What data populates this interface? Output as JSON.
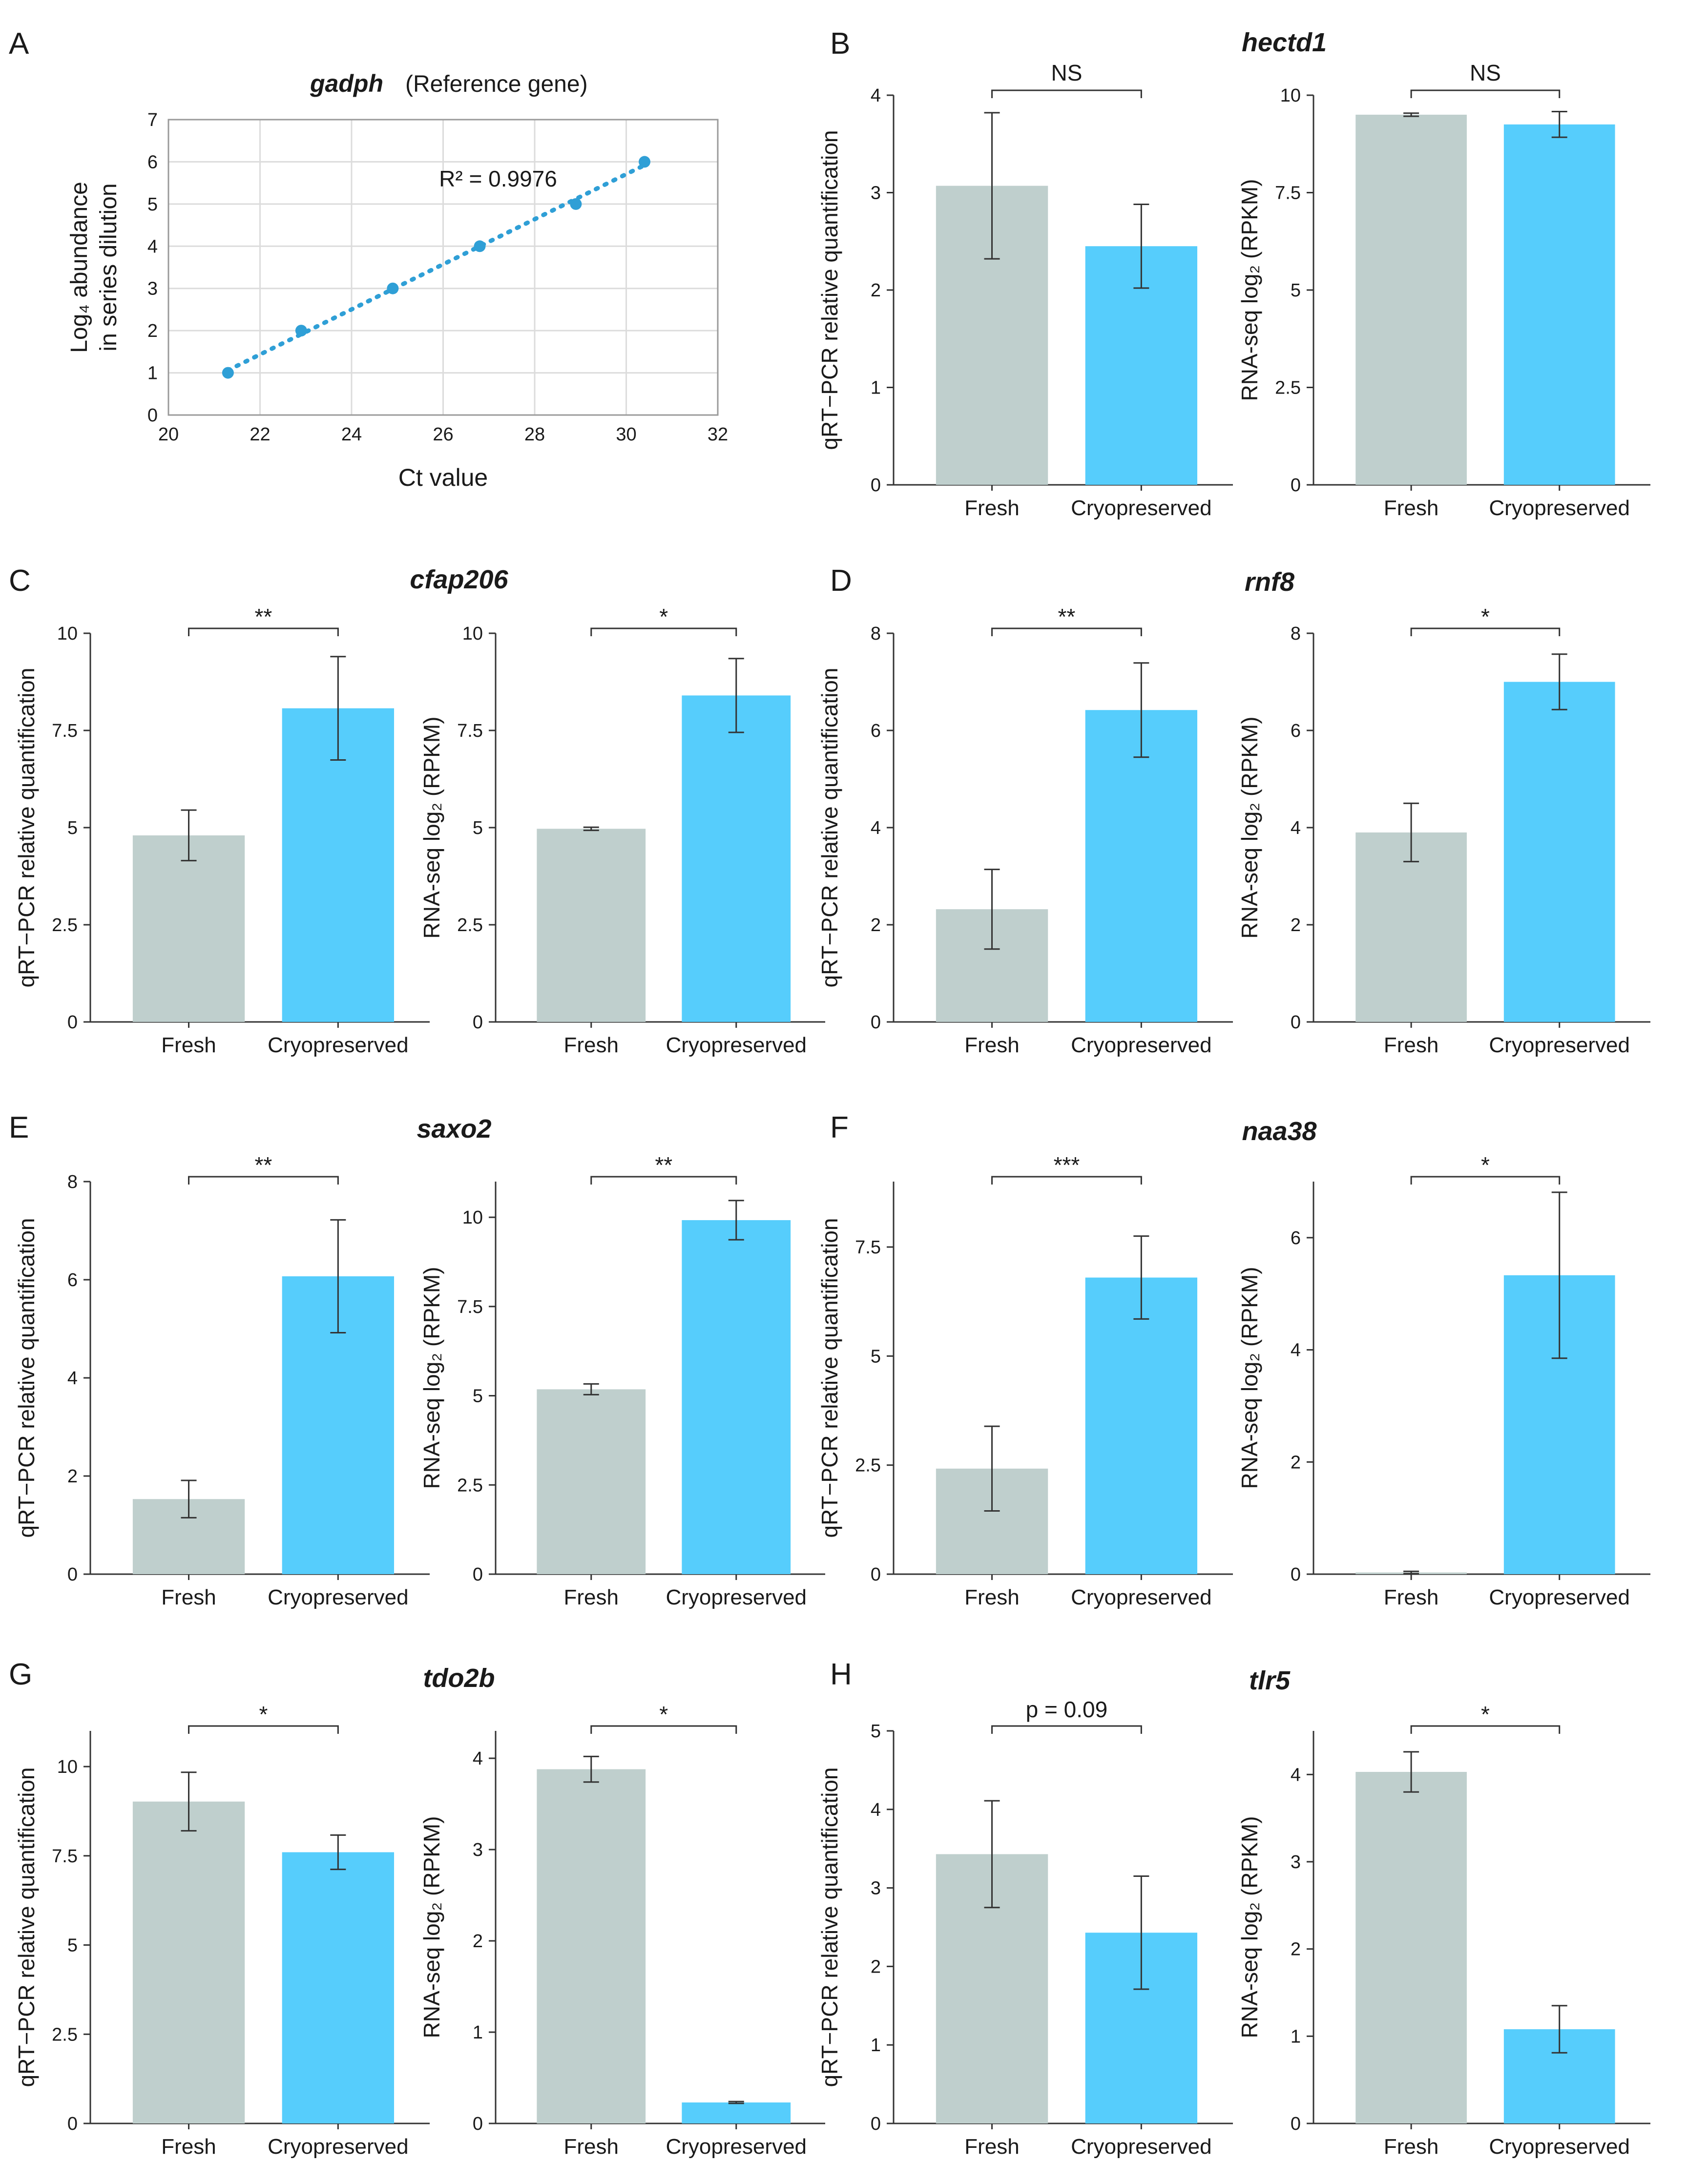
{
  "colors": {
    "fresh": "#bfcfcd",
    "cryo": "#56cdfc",
    "scatter": "#2f9fd6",
    "axis": "#333333",
    "grid": "#dcdcdc",
    "text": "#1a1a1a"
  },
  "chart_data": [
    {
      "panel": "A",
      "type": "scatter",
      "title": "gadph",
      "subtitle": "(Reference gene)",
      "xlabel": "Ct value",
      "ylabel": [
        "Log₄ abundance",
        "in series dilution"
      ],
      "xlim": [
        20,
        32
      ],
      "ylim": [
        0,
        7
      ],
      "xticks": [
        20,
        22,
        24,
        26,
        28,
        30,
        32
      ],
      "yticks": [
        0,
        1,
        2,
        3,
        4,
        5,
        6,
        7
      ],
      "grid": true,
      "x": [
        21.3,
        22.9,
        24.9,
        26.8,
        28.9,
        30.4
      ],
      "y": [
        1,
        2,
        3,
        4,
        5,
        6
      ],
      "annotation": "R² = 0.9976"
    },
    {
      "panel": "B",
      "gene": "hectd1",
      "type": "bar",
      "ylabel": "qRT−PCR relative quantification",
      "categories": [
        "Fresh",
        "Cryopreserved"
      ],
      "values": [
        3.07,
        2.45
      ],
      "errors": [
        0.75,
        0.43
      ],
      "ylim": [
        0,
        4
      ],
      "yticks": [
        "0",
        "1",
        "2",
        "3",
        "4"
      ],
      "significance": "NS"
    },
    {
      "panel": "B",
      "gene": "hectd1",
      "type": "bar",
      "ylabel": "RNA-seq log₂ (RPKM)",
      "categories": [
        "Fresh",
        "Cryopreserved"
      ],
      "values": [
        9.5,
        9.25
      ],
      "errors": [
        0.04,
        0.33
      ],
      "ylim": [
        0,
        10
      ],
      "yticks": [
        "0",
        "2.5",
        "5",
        "7.5",
        "10"
      ],
      "significance": "NS"
    },
    {
      "panel": "C",
      "gene": "cfap206",
      "type": "bar",
      "ylabel": "qRT−PCR relative quantification",
      "categories": [
        "Fresh",
        "Cryopreserved"
      ],
      "values": [
        4.8,
        8.07
      ],
      "errors": [
        0.65,
        1.33
      ],
      "ylim": [
        0,
        10
      ],
      "yticks": [
        "0",
        "2.5",
        "5",
        "7.5",
        "10"
      ],
      "significance": "**"
    },
    {
      "panel": "C",
      "gene": "cfap206",
      "type": "bar",
      "ylabel": "RNA-seq log₂ (RPKM)",
      "categories": [
        "Fresh",
        "Cryopreserved"
      ],
      "values": [
        4.97,
        8.4
      ],
      "errors": [
        0.04,
        0.95
      ],
      "ylim": [
        0,
        10
      ],
      "yticks": [
        "0",
        "2.5",
        "5",
        "7.5",
        "10"
      ],
      "significance": "*"
    },
    {
      "panel": "D",
      "gene": "rnf8",
      "type": "bar",
      "ylabel": "qRT−PCR relative quantification",
      "categories": [
        "Fresh",
        "Cryopreserved"
      ],
      "values": [
        2.32,
        6.42
      ],
      "errors": [
        0.82,
        0.97
      ],
      "ylim": [
        0,
        8
      ],
      "yticks": [
        "0",
        "2",
        "4",
        "6",
        "8"
      ],
      "significance": "**"
    },
    {
      "panel": "D",
      "gene": "rnf8",
      "type": "bar",
      "ylabel": "RNA-seq log₂ (RPKM)",
      "categories": [
        "Fresh",
        "Cryopreserved"
      ],
      "values": [
        3.9,
        7.0
      ],
      "errors": [
        0.6,
        0.57
      ],
      "ylim": [
        0,
        8
      ],
      "yticks": [
        "0",
        "2",
        "4",
        "6",
        "8"
      ],
      "significance": "*"
    },
    {
      "panel": "E",
      "gene": "saxo2",
      "type": "bar",
      "ylabel": "qRT−PCR relative quantification",
      "categories": [
        "Fresh",
        "Cryopreserved"
      ],
      "values": [
        1.53,
        6.07
      ],
      "errors": [
        0.38,
        1.15
      ],
      "ylim": [
        0,
        8
      ],
      "yticks": [
        "0",
        "2",
        "4",
        "6",
        "8"
      ],
      "significance": "**"
    },
    {
      "panel": "E",
      "gene": "saxo2",
      "type": "bar",
      "ylabel": "RNA-seq log₂ (RPKM)",
      "categories": [
        "Fresh",
        "Cryopreserved"
      ],
      "values": [
        5.18,
        9.92
      ],
      "errors": [
        0.15,
        0.55
      ],
      "ylim": [
        0,
        11
      ],
      "yticks": [
        "0",
        "2.5",
        "5",
        "7.5",
        "10"
      ],
      "significance": "**"
    },
    {
      "panel": "F",
      "gene": "naa38",
      "type": "bar",
      "ylabel": "qRT−PCR relative quantification",
      "categories": [
        "Fresh",
        "Cryopreserved"
      ],
      "values": [
        2.42,
        6.8
      ],
      "errors": [
        0.97,
        0.95
      ],
      "ylim": [
        0,
        9
      ],
      "yticks": [
        "0",
        "2.5",
        "5",
        "7.5"
      ],
      "significance": "***"
    },
    {
      "panel": "F",
      "gene": "naa38",
      "type": "bar",
      "ylabel": "RNA-seq log₂ (RPKM)",
      "categories": [
        "Fresh",
        "Cryopreserved"
      ],
      "values": [
        0.03,
        5.33
      ],
      "errors": [
        0.02,
        1.48
      ],
      "ylim": [
        0,
        7
      ],
      "yticks": [
        "0",
        "2",
        "4",
        "6"
      ],
      "significance": "*"
    },
    {
      "panel": "G",
      "gene": "tdo2b",
      "type": "bar",
      "ylabel": "qRT−PCR relative quantification",
      "categories": [
        "Fresh",
        "Cryopreserved"
      ],
      "values": [
        9.02,
        7.6
      ],
      "errors": [
        0.82,
        0.48
      ],
      "ylim": [
        0,
        11
      ],
      "yticks": [
        "0",
        "2.5",
        "5",
        "7.5",
        "10"
      ],
      "significance": "*"
    },
    {
      "panel": "G",
      "gene": "tdo2b",
      "type": "bar",
      "ylabel": "RNA-seq log₂ (RPKM)",
      "categories": [
        "Fresh",
        "Cryopreserved"
      ],
      "values": [
        3.88,
        0.23
      ],
      "errors": [
        0.14,
        0.01
      ],
      "ylim": [
        0,
        4.3
      ],
      "yticks": [
        "0",
        "1",
        "2",
        "3",
        "4"
      ],
      "significance": "*"
    },
    {
      "panel": "H",
      "gene": "tlr5",
      "type": "bar",
      "ylabel": "qRT−PCR relative quantification",
      "categories": [
        "Fresh",
        "Cryopreserved"
      ],
      "values": [
        3.43,
        2.43
      ],
      "errors": [
        0.68,
        0.72
      ],
      "ylim": [
        0,
        5
      ],
      "yticks": [
        "0",
        "1",
        "2",
        "3",
        "4",
        "5"
      ],
      "significance": "p = 0.09"
    },
    {
      "panel": "H",
      "gene": "tlr5",
      "type": "bar",
      "ylabel": "RNA-seq log₂ (RPKM)",
      "categories": [
        "Fresh",
        "Cryopreserved"
      ],
      "values": [
        4.03,
        1.08
      ],
      "errors": [
        0.23,
        0.27
      ],
      "ylim": [
        0,
        4.5
      ],
      "yticks": [
        "0",
        "1",
        "2",
        "3",
        "4"
      ],
      "significance": "*"
    }
  ]
}
